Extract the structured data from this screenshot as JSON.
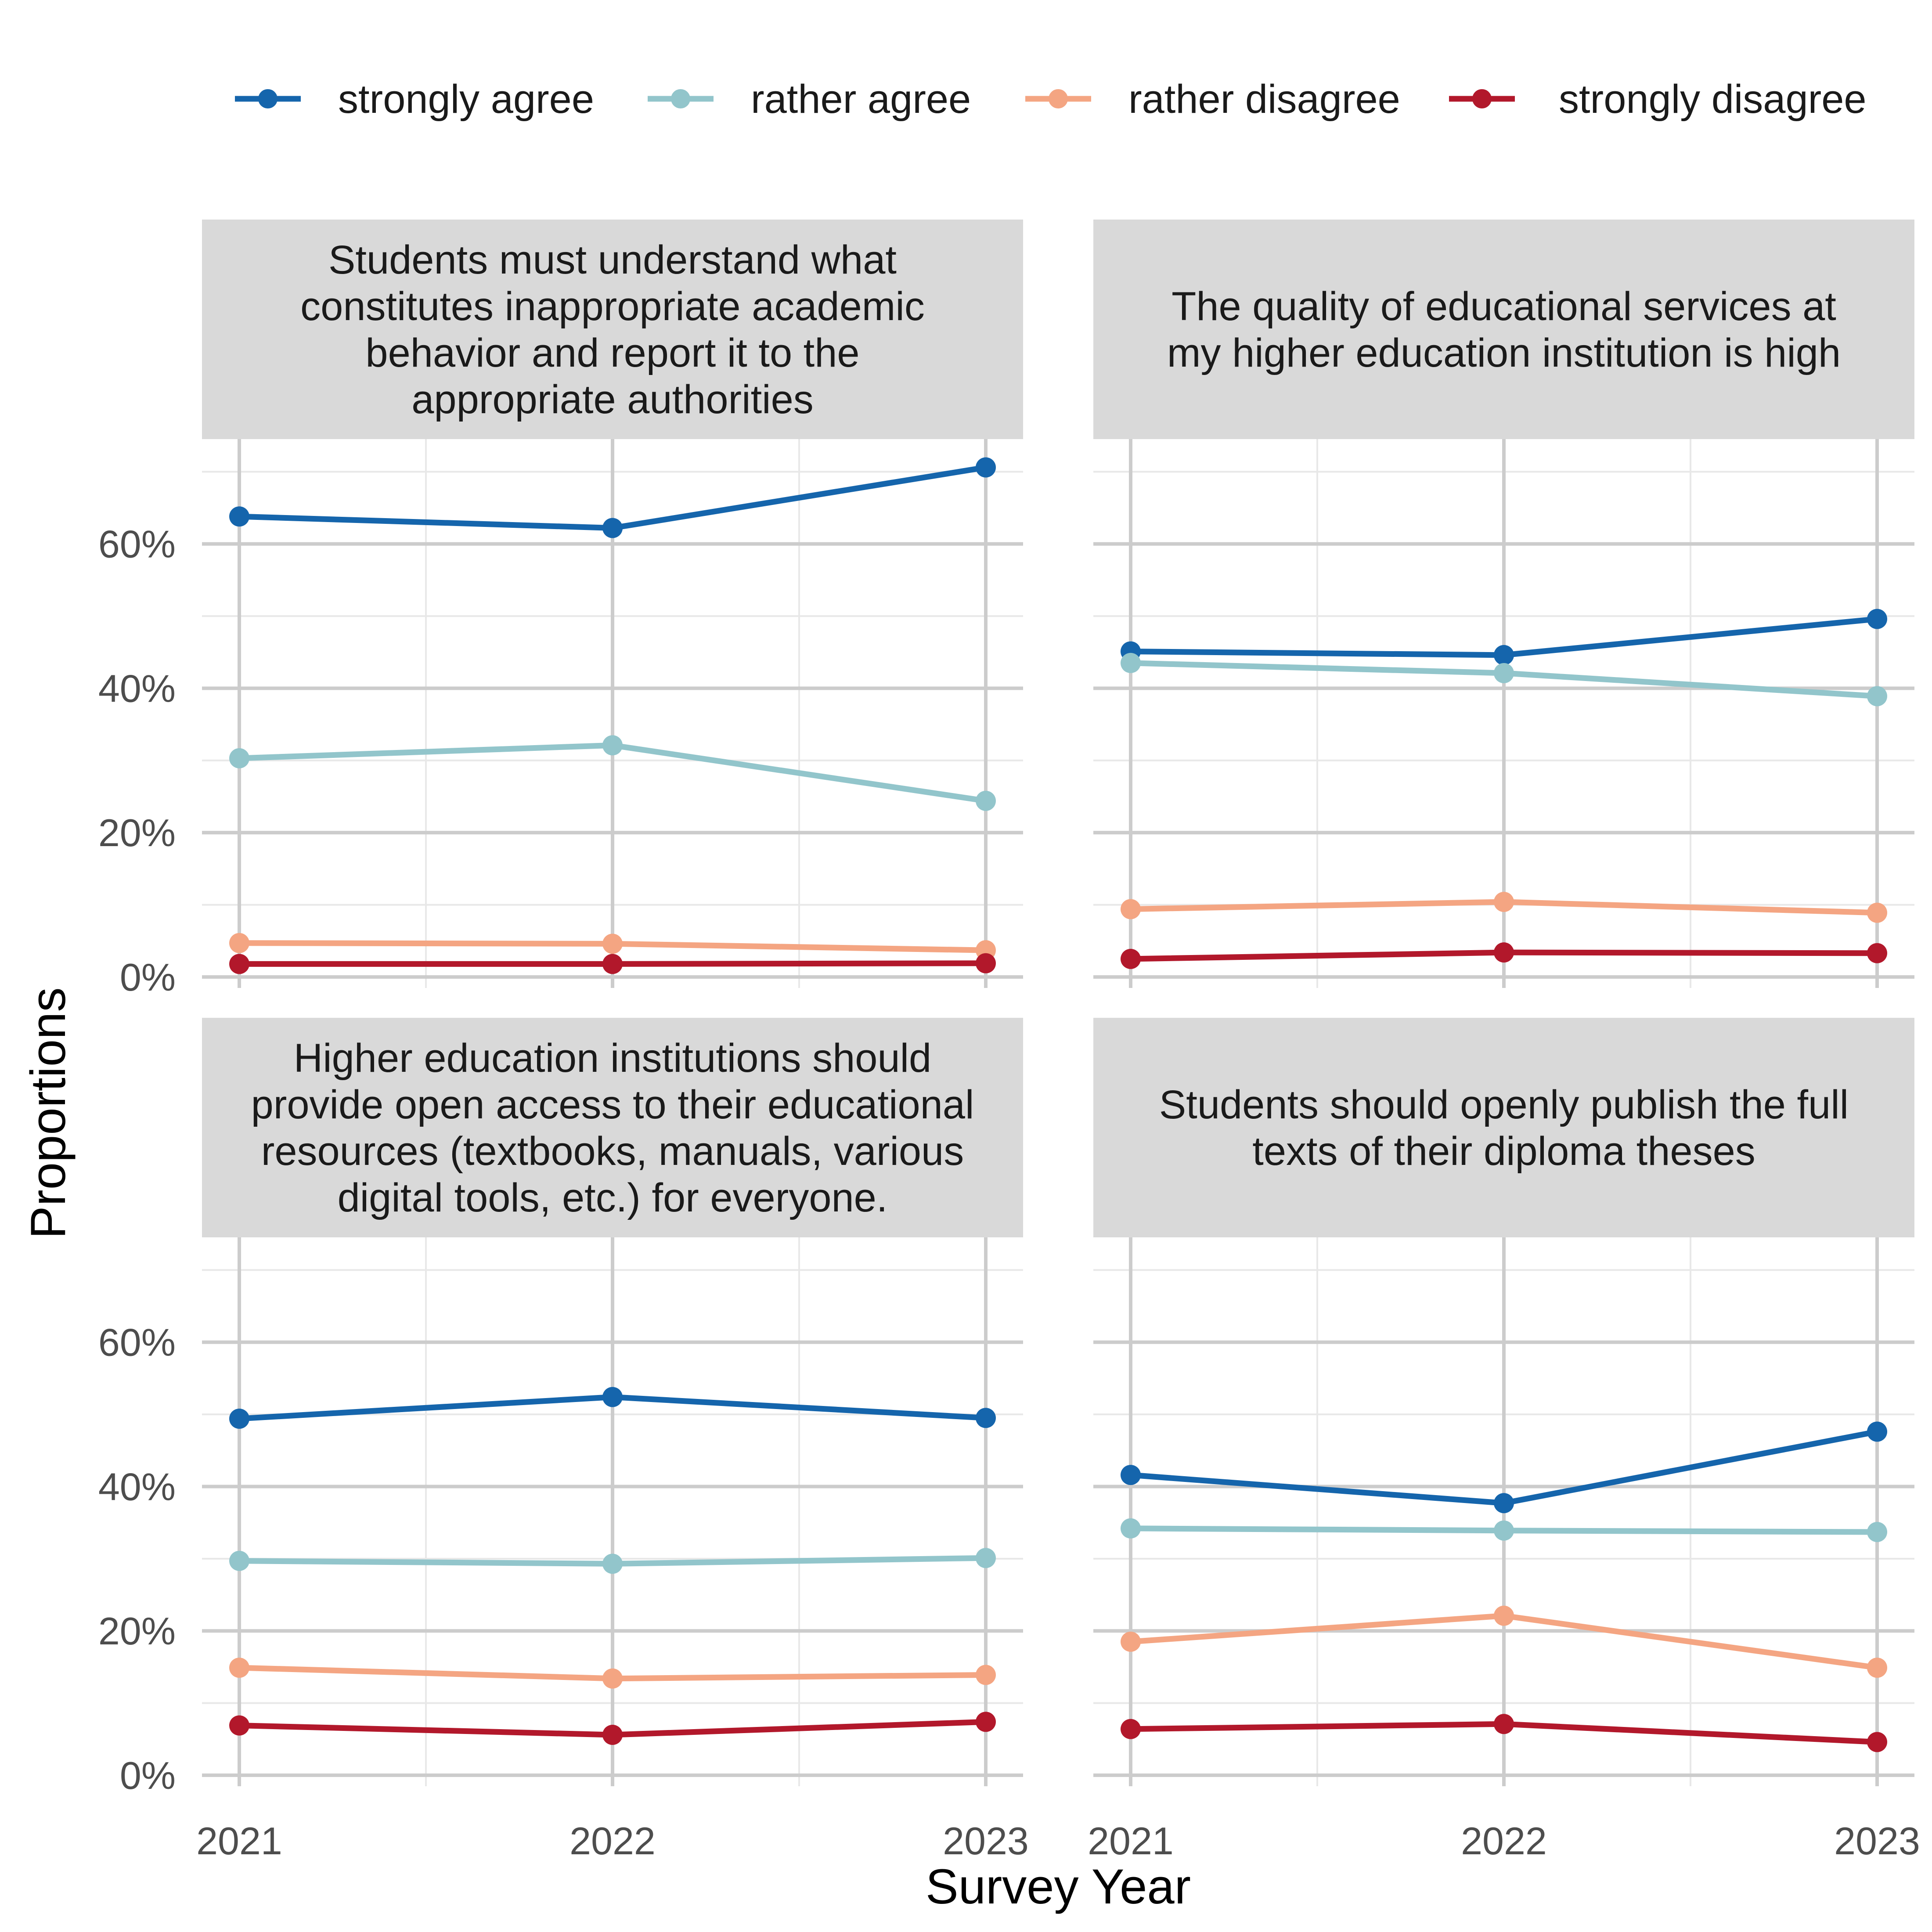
{
  "chart_data": {
    "type": "line",
    "xlabel": "Survey Year",
    "ylabel": "Proportions",
    "x": [
      2021,
      2022,
      2023
    ],
    "ylim": [
      0,
      0.73
    ],
    "yticks": [
      0,
      0.2,
      0.4,
      0.6
    ],
    "ytick_labels": [
      "0%",
      "20%",
      "40%",
      "60%"
    ],
    "grid": true,
    "legend": {
      "position": "top",
      "entries": [
        "strongly agree",
        "rather agree",
        "rather disagree",
        "strongly disagree"
      ]
    },
    "colors": {
      "strongly agree": "#1565ac",
      "rather agree": "#92c5cb",
      "rather disagree": "#f4a582",
      "strongly disagree": "#b2182b"
    },
    "panels": [
      {
        "title_lines": [
          "Students must understand what",
          "constitutes inappropriate academic",
          "behavior and report it to the",
          "appropriate authorities"
        ],
        "series": [
          {
            "name": "strongly agree",
            "values": [
              0.638,
              0.622,
              0.706
            ]
          },
          {
            "name": "rather agree",
            "values": [
              0.303,
              0.321,
              0.244
            ]
          },
          {
            "name": "rather disagree",
            "values": [
              0.047,
              0.046,
              0.037
            ]
          },
          {
            "name": "strongly disagree",
            "values": [
              0.018,
              0.018,
              0.019
            ]
          }
        ]
      },
      {
        "title_lines": [
          "The quality of educational services at",
          "my higher education institution is high"
        ],
        "series": [
          {
            "name": "strongly agree",
            "values": [
              0.451,
              0.446,
              0.496
            ]
          },
          {
            "name": "rather agree",
            "values": [
              0.435,
              0.421,
              0.389
            ]
          },
          {
            "name": "rather disagree",
            "values": [
              0.094,
              0.104,
              0.089
            ]
          },
          {
            "name": "strongly disagree",
            "values": [
              0.025,
              0.034,
              0.033
            ]
          }
        ]
      },
      {
        "title_lines": [
          "Higher education institutions should",
          "provide open access to their educational",
          "resources (textbooks, manuals, various",
          "digital tools, etc.) for everyone."
        ],
        "series": [
          {
            "name": "strongly agree",
            "values": [
              0.494,
              0.524,
              0.495
            ]
          },
          {
            "name": "rather agree",
            "values": [
              0.297,
              0.293,
              0.301
            ]
          },
          {
            "name": "rather disagree",
            "values": [
              0.149,
              0.134,
              0.139
            ]
          },
          {
            "name": "strongly disagree",
            "values": [
              0.069,
              0.056,
              0.074
            ]
          }
        ]
      },
      {
        "title_lines": [
          "Students should openly publish the full",
          "texts of their diploma theses"
        ],
        "series": [
          {
            "name": "strongly agree",
            "values": [
              0.416,
              0.377,
              0.476
            ]
          },
          {
            "name": "rather agree",
            "values": [
              0.342,
              0.339,
              0.337
            ]
          },
          {
            "name": "rather disagree",
            "values": [
              0.185,
              0.221,
              0.149
            ]
          },
          {
            "name": "strongly disagree",
            "values": [
              0.064,
              0.071,
              0.046
            ]
          }
        ]
      }
    ]
  }
}
